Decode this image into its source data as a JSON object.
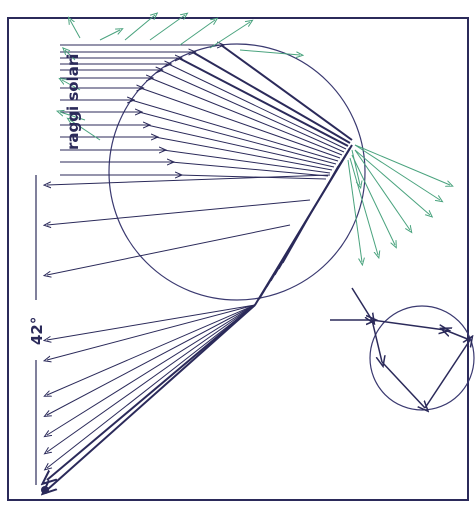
{
  "labels": {
    "sun_rays": "raggi solari",
    "angle": "42°"
  }
}
